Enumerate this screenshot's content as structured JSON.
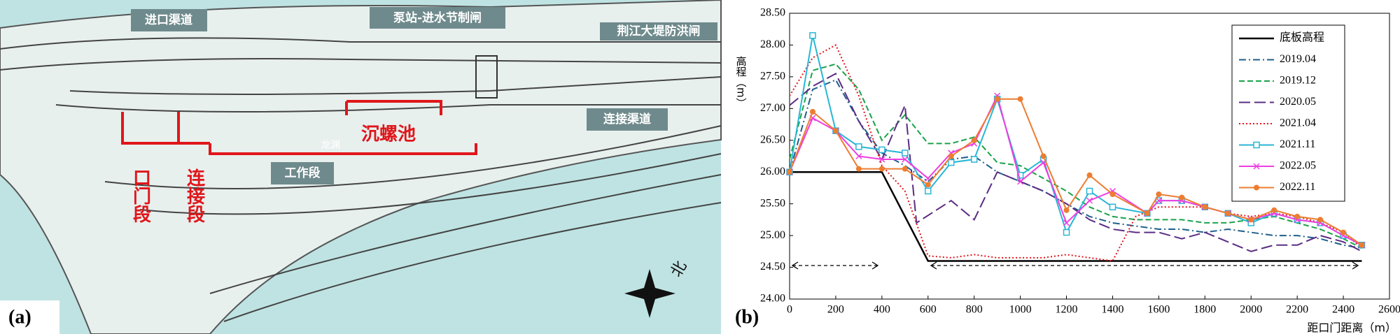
{
  "map": {
    "panel_label": "(a)",
    "labels": {
      "inlet": "进口渠道",
      "pump": "泵站-进水节制闸",
      "gate": "荆江大堤防洪闸",
      "link_channel": "连接渠道",
      "pool": "沉螺池",
      "work": "工作段",
      "mouth": "口门段",
      "connect": "连接段",
      "place": "龙渊",
      "north": "北"
    }
  },
  "chart_data": {
    "type": "line",
    "panel_label": "(b)",
    "x_label": "距口门距离（m）",
    "y_label": "高程（m）",
    "xlim": [
      0,
      2600
    ],
    "xticks": [
      0,
      200,
      400,
      600,
      800,
      1000,
      1200,
      1400,
      1600,
      1800,
      2000,
      2200,
      2400,
      2600
    ],
    "ylim": [
      24,
      28.5
    ],
    "yticks": [
      {
        "value": 24,
        "label": "24.00"
      },
      {
        "value": 24.5,
        "label": "24.50"
      },
      {
        "value": 25,
        "label": "25.00"
      },
      {
        "value": 25.5,
        "label": "25.50"
      },
      {
        "value": 26,
        "label": "26.00"
      },
      {
        "value": 26.5,
        "label": "26.50"
      },
      {
        "value": 27,
        "label": "27.00"
      },
      {
        "value": 27.5,
        "label": "27.50"
      },
      {
        "value": 28,
        "label": "28.00"
      },
      {
        "value": 28.5,
        "label": "28.50"
      }
    ],
    "legend": "upper right",
    "series": [
      {
        "name": "底板高程",
        "color": "#000000",
        "dash": "solid",
        "marker": "none",
        "x": [
          0,
          400,
          600,
          2480
        ],
        "values": [
          26,
          26,
          24.6,
          24.6
        ]
      },
      {
        "name": "2019.04",
        "color": "#1f5f8b",
        "dash": "dashdot",
        "marker": "none",
        "x": [
          0,
          100,
          200,
          300,
          400,
          500,
          600,
          700,
          800,
          900,
          1000,
          1100,
          1200,
          1300,
          1400,
          1500,
          1600,
          1700,
          1800,
          1900,
          2000,
          2100,
          2200,
          2300,
          2400,
          2480
        ],
        "values": [
          26.0,
          27.3,
          27.45,
          26.8,
          26.3,
          26.1,
          25.85,
          26.2,
          26.25,
          26.0,
          25.85,
          25.7,
          25.5,
          25.3,
          25.2,
          25.15,
          25.1,
          25.1,
          25.05,
          25.1,
          25.05,
          25.0,
          25.0,
          24.95,
          24.85,
          24.8
        ]
      },
      {
        "name": "2019.12",
        "color": "#1aa34a",
        "dash": "dashed",
        "marker": "none",
        "x": [
          0,
          100,
          200,
          300,
          400,
          500,
          600,
          700,
          800,
          900,
          1000,
          1100,
          1200,
          1300,
          1400,
          1500,
          1600,
          1700,
          1800,
          1900,
          2000,
          2100,
          2200,
          2300,
          2400,
          2480
        ],
        "values": [
          26.2,
          27.6,
          27.7,
          27.3,
          26.5,
          26.9,
          26.45,
          26.45,
          26.55,
          26.15,
          26.1,
          25.9,
          25.7,
          25.45,
          25.3,
          25.25,
          25.25,
          25.25,
          25.2,
          25.2,
          25.25,
          25.3,
          25.2,
          25.1,
          24.95,
          24.8
        ]
      },
      {
        "name": "2020.05",
        "color": "#5b2c83",
        "dash": "longdash",
        "marker": "none",
        "x": [
          0,
          100,
          200,
          300,
          400,
          500,
          550,
          700,
          800,
          900,
          1000,
          1100,
          1200,
          1300,
          1400,
          1500,
          1600,
          1700,
          1800,
          1900,
          2000,
          2100,
          2200,
          2300,
          2400,
          2480
        ],
        "values": [
          27.05,
          27.35,
          27.55,
          26.8,
          26.2,
          27.05,
          25.2,
          25.55,
          25.25,
          26.0,
          25.85,
          25.7,
          25.5,
          25.25,
          25.1,
          25.05,
          25.05,
          24.95,
          25.05,
          24.9,
          24.75,
          24.85,
          24.85,
          25.0,
          24.9,
          24.75
        ]
      },
      {
        "name": "2021.04",
        "color": "#e0161b",
        "dash": "dotted",
        "marker": "none",
        "x": [
          0,
          100,
          200,
          300,
          400,
          500,
          600,
          700,
          800,
          900,
          1000,
          1100,
          1200,
          1300,
          1400,
          1500,
          1600,
          1700,
          1800,
          1900,
          2000,
          2100,
          2200,
          2300,
          2400,
          2480
        ],
        "values": [
          27.2,
          27.8,
          28.0,
          27.2,
          26.1,
          25.7,
          24.68,
          24.65,
          24.7,
          24.65,
          24.65,
          24.65,
          24.7,
          24.65,
          24.6,
          25.3,
          25.45,
          25.45,
          25.45,
          25.35,
          25.3,
          25.35,
          25.3,
          25.2,
          25.05,
          24.8
        ]
      },
      {
        "name": "2021.11",
        "color": "#29b6d6",
        "dash": "solid",
        "marker": "square",
        "x": [
          0,
          100,
          200,
          300,
          400,
          500,
          600,
          700,
          800,
          900,
          1000,
          1100,
          1200,
          1300,
          1400,
          1550,
          1600,
          1700,
          1800,
          1900,
          2000,
          2100,
          2200,
          2300,
          2400,
          2480
        ],
        "values": [
          26.0,
          28.15,
          26.65,
          26.4,
          26.35,
          26.3,
          25.7,
          26.15,
          26.2,
          27.15,
          25.95,
          26.2,
          25.05,
          25.7,
          25.45,
          25.35,
          25.55,
          25.55,
          25.45,
          25.35,
          25.2,
          25.35,
          25.25,
          25.2,
          25.0,
          24.85
        ]
      },
      {
        "name": "2022.05",
        "color": "#ee3fe0",
        "dash": "solid",
        "marker": "x",
        "x": [
          0,
          100,
          200,
          300,
          400,
          500,
          600,
          700,
          800,
          900,
          1000,
          1100,
          1200,
          1300,
          1400,
          1550,
          1600,
          1700,
          1800,
          1900,
          2000,
          2100,
          2200,
          2300,
          2400,
          2480
        ],
        "values": [
          26.0,
          26.85,
          26.65,
          26.25,
          26.2,
          26.2,
          25.9,
          26.3,
          26.45,
          27.2,
          25.85,
          26.15,
          25.2,
          25.55,
          25.7,
          25.35,
          25.55,
          25.55,
          25.45,
          25.35,
          25.25,
          25.35,
          25.25,
          25.2,
          25.0,
          24.85
        ]
      },
      {
        "name": "2022.11",
        "color": "#ed7d31",
        "dash": "solid",
        "marker": "circle",
        "x": [
          0,
          100,
          200,
          300,
          400,
          500,
          600,
          700,
          800,
          900,
          1000,
          1100,
          1200,
          1300,
          1400,
          1550,
          1600,
          1700,
          1800,
          1900,
          2000,
          2100,
          2200,
          2300,
          2400,
          2480
        ],
        "values": [
          26.0,
          26.95,
          26.65,
          26.05,
          26.05,
          26.05,
          25.8,
          26.25,
          26.5,
          27.15,
          27.15,
          26.25,
          25.4,
          25.95,
          25.65,
          25.35,
          25.65,
          25.6,
          25.45,
          25.35,
          25.25,
          25.4,
          25.3,
          25.25,
          25.05,
          24.85
        ]
      }
    ]
  }
}
